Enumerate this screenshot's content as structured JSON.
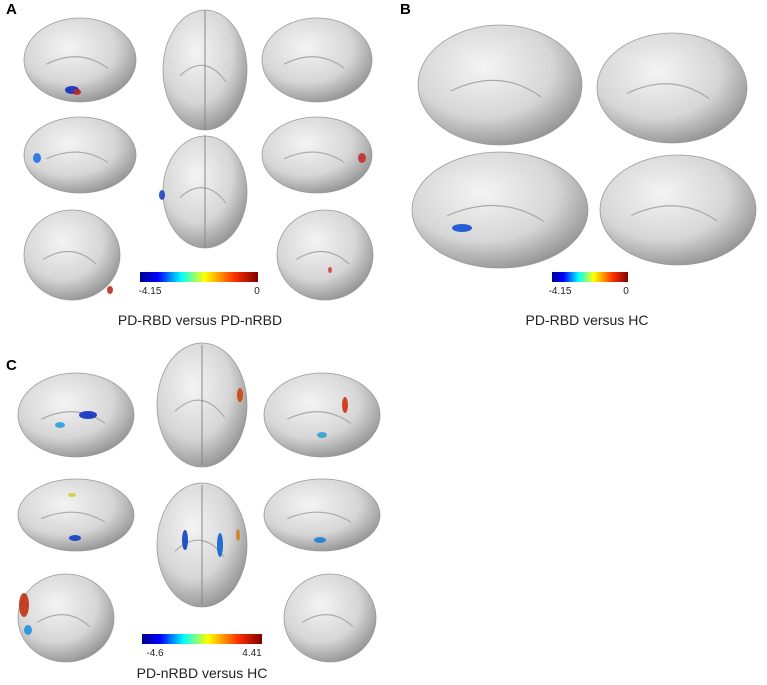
{
  "panels": [
    {
      "label": "A",
      "colorbar": {
        "min": "-4.15",
        "max": "0"
      },
      "caption": "PD-RBD versus PD-nRBD"
    },
    {
      "label": "B",
      "colorbar": {
        "min": "-4.15",
        "max": "0"
      },
      "caption": "PD-RBD versus HC"
    },
    {
      "label": "C",
      "colorbar": {
        "min": "-4.6",
        "max": "4.41"
      },
      "caption": "PD-nRBD versus HC"
    }
  ]
}
